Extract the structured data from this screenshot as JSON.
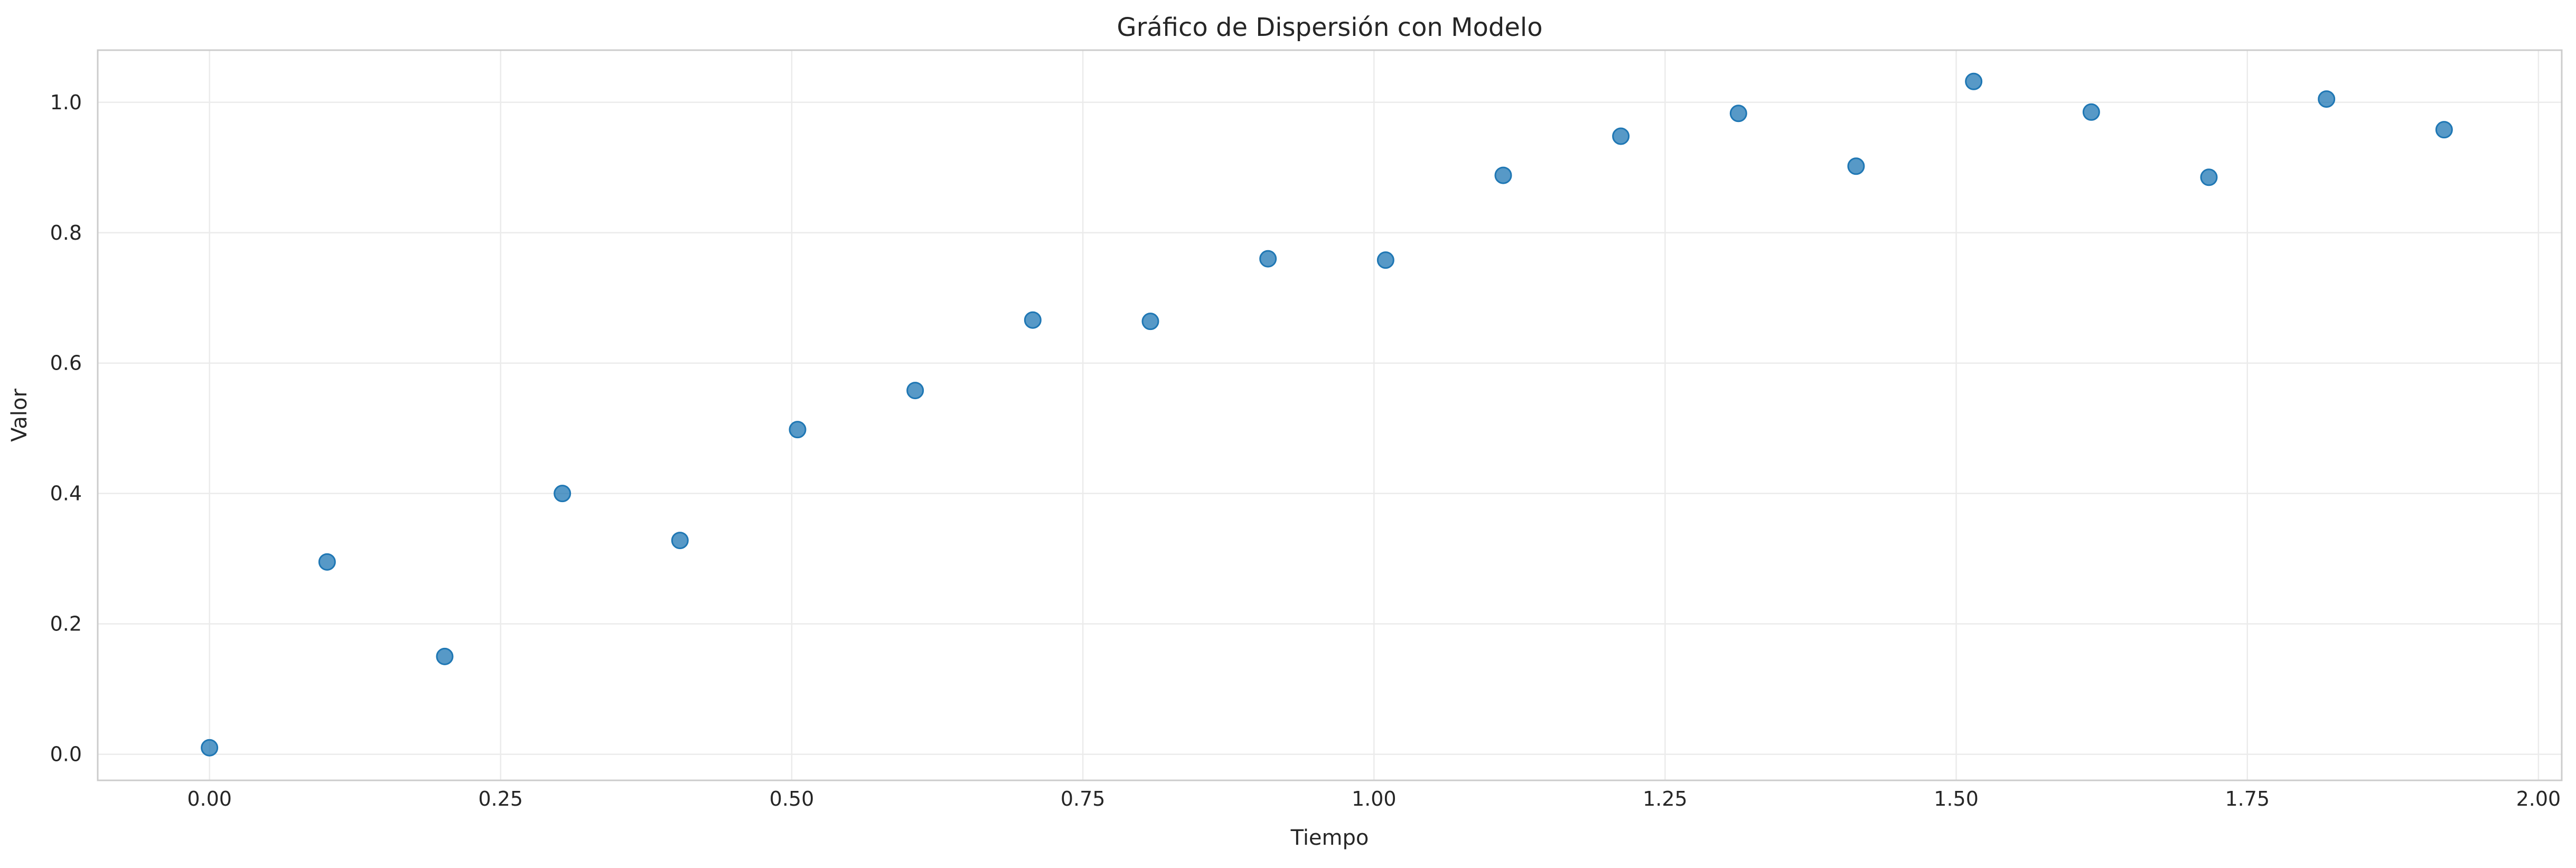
{
  "chart_data": {
    "type": "scatter",
    "title": "Gráfico de Dispersión con Modelo",
    "xlabel": "Tiempo",
    "ylabel": "Valor",
    "xlim": [
      -0.096,
      2.02
    ],
    "ylim": [
      -0.04,
      1.08
    ],
    "xticks": [
      0.0,
      0.25,
      0.5,
      0.75,
      1.0,
      1.25,
      1.5,
      1.75,
      2.0
    ],
    "xtick_labels": [
      "0.00",
      "0.25",
      "0.50",
      "0.75",
      "1.00",
      "1.25",
      "1.50",
      "1.75",
      "2.00"
    ],
    "yticks": [
      0.0,
      0.2,
      0.4,
      0.6,
      0.8,
      1.0
    ],
    "ytick_labels": [
      "0.0",
      "0.2",
      "0.4",
      "0.6",
      "0.8",
      "1.0"
    ],
    "grid": true,
    "legend": "none",
    "marker_color": "#1f77b4",
    "series": [
      {
        "x": [
          0.0,
          0.101,
          0.202,
          0.303,
          0.404,
          0.505,
          0.606,
          0.707,
          0.808,
          0.909,
          1.01,
          1.111,
          1.212,
          1.313,
          1.414,
          1.515,
          1.616,
          1.717,
          1.818,
          1.919
        ],
        "y": [
          0.01,
          0.295,
          0.15,
          0.4,
          0.328,
          0.498,
          0.558,
          0.666,
          0.664,
          0.76,
          0.758,
          0.888,
          0.948,
          0.983,
          0.902,
          1.032,
          0.985,
          0.885,
          1.005,
          0.958
        ]
      }
    ]
  }
}
